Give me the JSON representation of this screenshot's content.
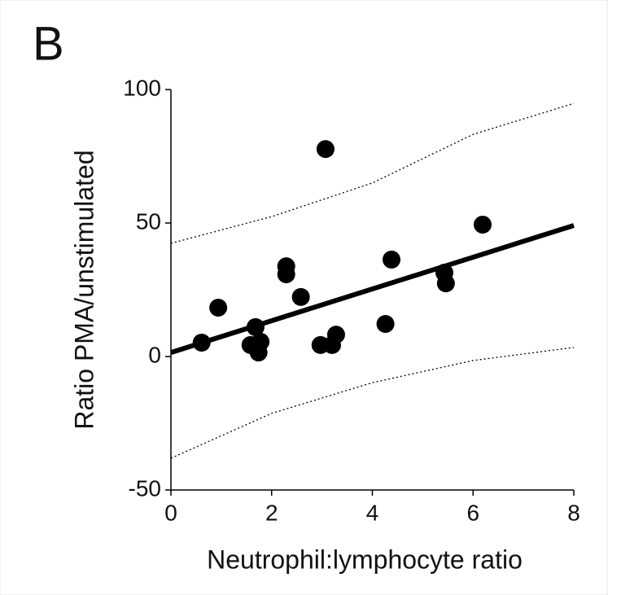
{
  "chart_data": {
    "type": "scatter",
    "panel_label": "B",
    "xlabel": "Neutrophil:lymphocyte ratio",
    "ylabel": "Ratio PMA/unstimulated",
    "x": [
      0.61,
      0.94,
      1.58,
      1.68,
      1.74,
      1.78,
      2.29,
      2.29,
      2.58,
      3.07,
      2.97,
      3.2,
      3.28,
      4.26,
      4.38,
      5.43,
      5.46,
      6.19
    ],
    "y": [
      5.2,
      18.3,
      4.3,
      11,
      1.5,
      5.5,
      33.8,
      30.8,
      22.3,
      77.7,
      4.3,
      4.3,
      8.2,
      12.2,
      36.3,
      31.4,
      27.4,
      49.4
    ],
    "color": "#000000",
    "fit_line": {
      "x": [
        0,
        8
      ],
      "y": [
        1.5,
        49.1
      ]
    },
    "confidence_band": {
      "x": [
        0,
        2,
        4,
        6,
        8
      ],
      "upper": [
        42.4,
        52.4,
        65,
        83.2,
        94.8
      ],
      "lower": [
        -38.1,
        -21.3,
        -9.8,
        -1.5,
        3.4
      ]
    },
    "xlim": [
      0,
      8
    ],
    "xticks": [
      0,
      2,
      4,
      6,
      8
    ],
    "ylim": [
      -50,
      100
    ],
    "yticks": [
      -50,
      0,
      50,
      100
    ],
    "grid": false
  }
}
